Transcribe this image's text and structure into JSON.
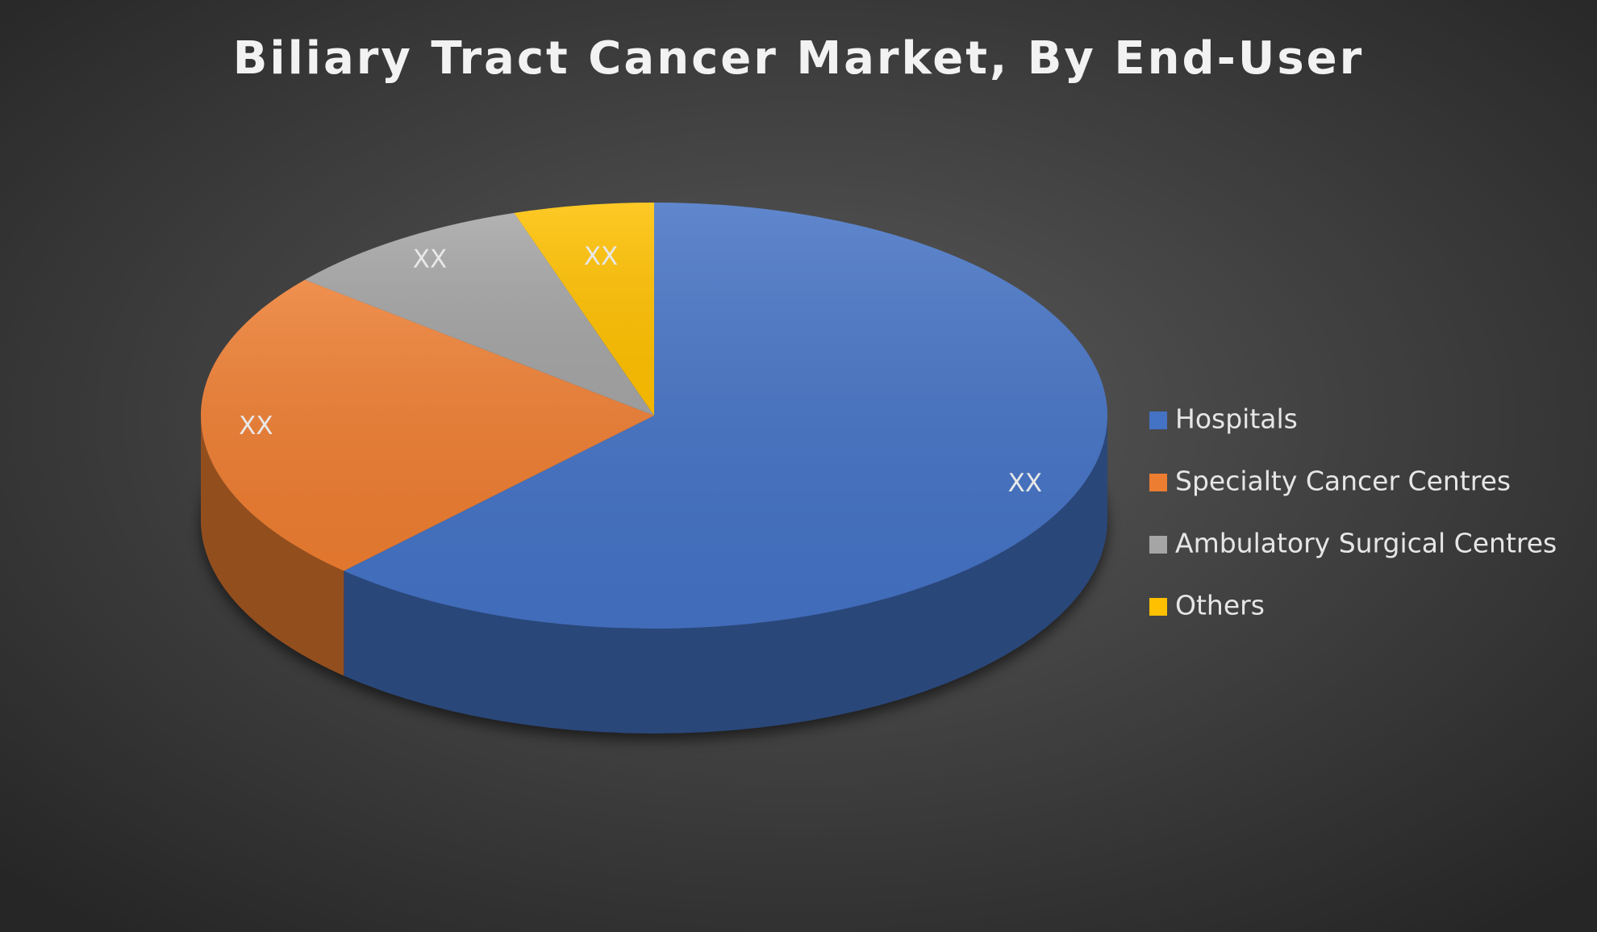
{
  "chart_data": {
    "type": "pie",
    "title": "Biliary Tract Cancer Market, By End-User",
    "categories": [
      "Hospitals",
      "Specialty Cancer Centres",
      "Ambulatory Surgical Centres",
      "Others"
    ],
    "values": [
      62,
      24,
      9,
      5
    ],
    "value_labels": [
      "XX",
      "XX",
      "XX",
      "XX"
    ],
    "colors": [
      "#4472c4",
      "#ed7d31",
      "#a5a5a5",
      "#ffc000"
    ],
    "legend": "right"
  }
}
